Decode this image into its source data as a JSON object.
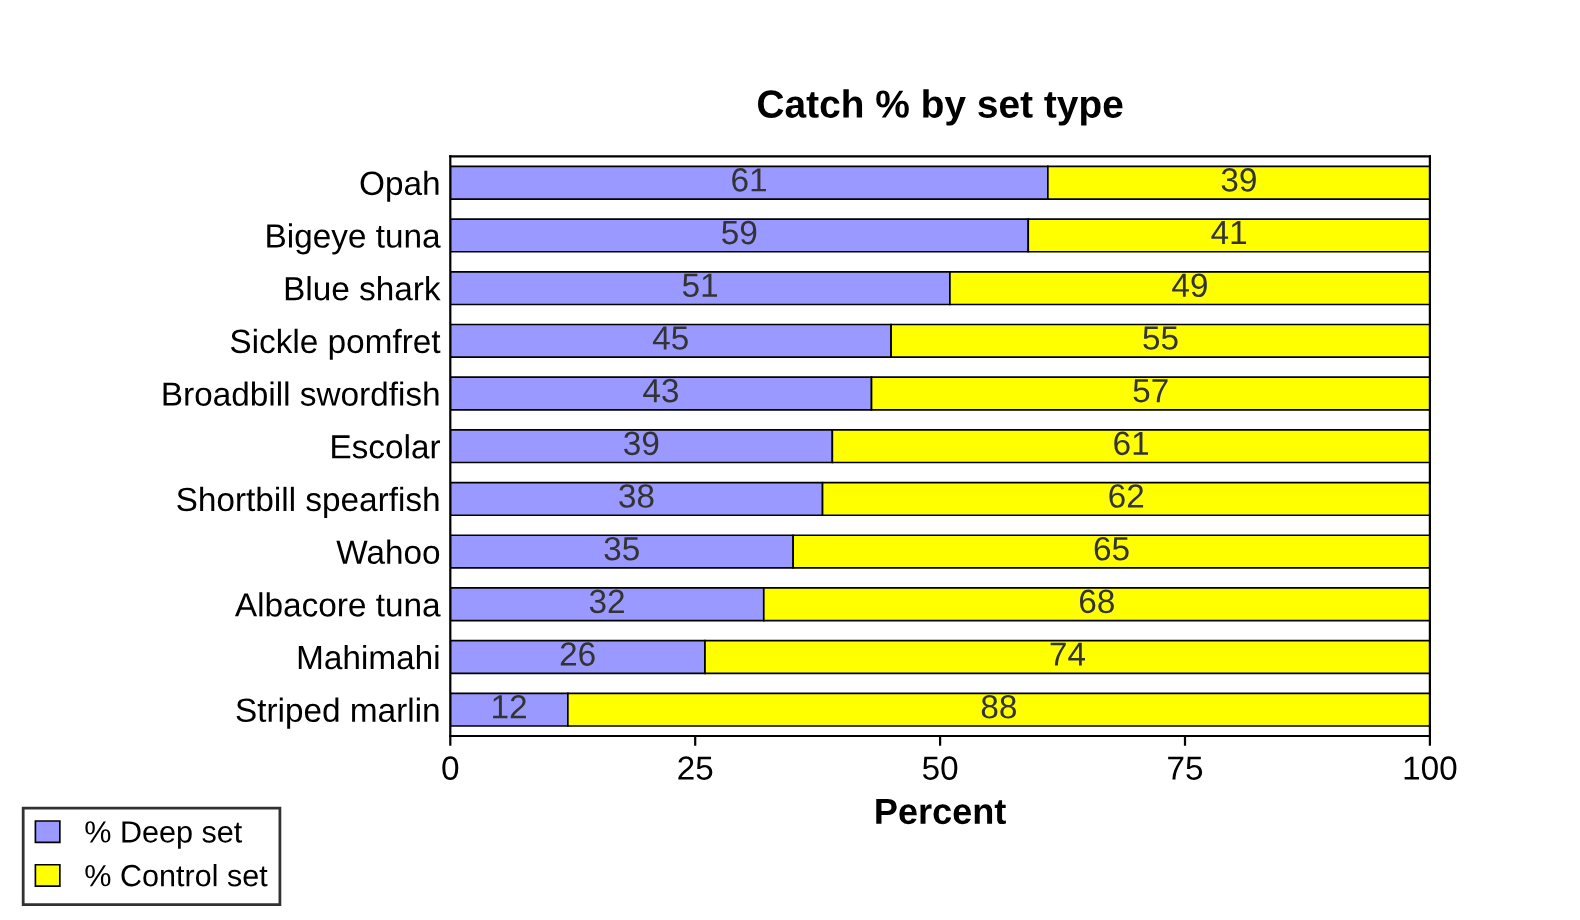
{
  "chart_data": {
    "type": "bar",
    "orientation": "horizontal",
    "stacked": true,
    "title": "Catch % by set type",
    "xlabel": "Percent",
    "categories": [
      "Opah",
      "Bigeye tuna",
      "Blue shark",
      "Sickle pomfret",
      "Broadbill swordfish",
      "Escolar",
      "Shortbill spearfish",
      "Wahoo",
      "Albacore tuna",
      "Mahimahi",
      "Striped marlin"
    ],
    "series": [
      {
        "name": "% Deep set",
        "color": "#9999ff",
        "values": [
          61,
          59,
          51,
          45,
          43,
          39,
          38,
          35,
          32,
          26,
          12
        ]
      },
      {
        "name": "% Control set",
        "color": "#ffff00",
        "values": [
          39,
          41,
          49,
          55,
          57,
          61,
          62,
          65,
          68,
          74,
          88
        ]
      }
    ],
    "xlim": [
      0,
      100
    ],
    "xticks": [
      0,
      25,
      50,
      75,
      100
    ],
    "data_labels": true,
    "grid": false,
    "legend": "bottom left"
  }
}
